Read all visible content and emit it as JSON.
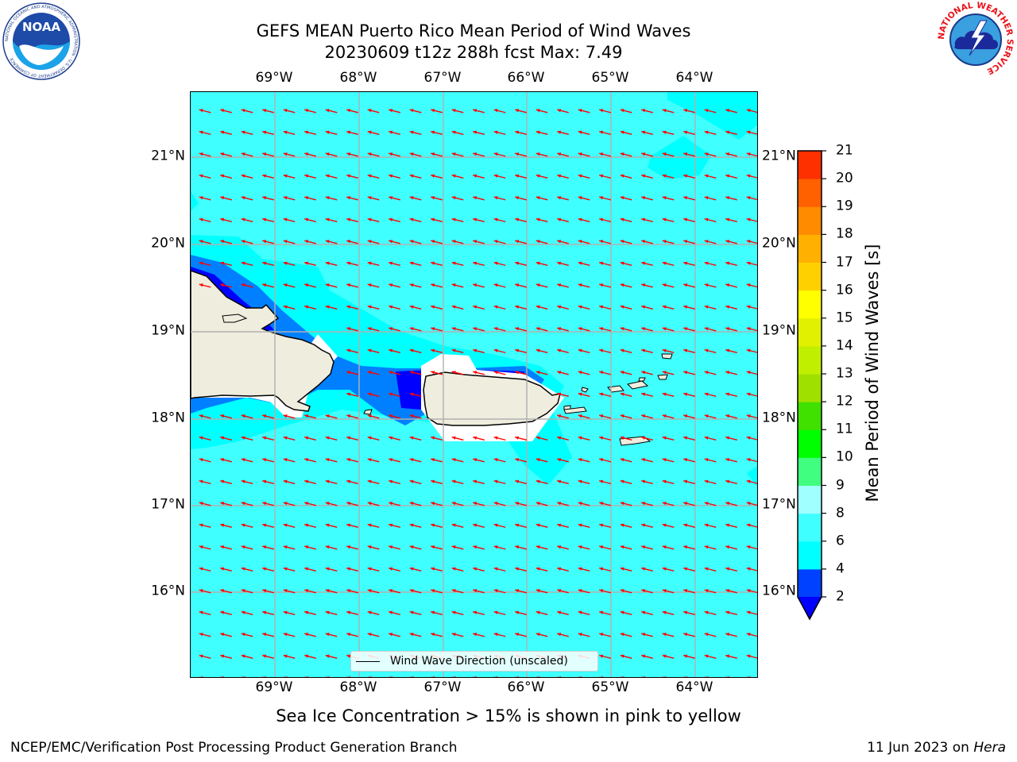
{
  "title": {
    "line1": "GEFS MEAN Puerto Rico Mean Period of Wind Waves",
    "line2": "20230609 t12z 288h fcst   Max: 7.49"
  },
  "map": {
    "lon_ticks": [
      "69°W",
      "68°W",
      "67°W",
      "66°W",
      "65°W",
      "64°W"
    ],
    "lat_ticks": [
      "21°N",
      "20°N",
      "19°N",
      "18°N",
      "17°N",
      "16°N"
    ],
    "lon_range": [
      -70.0,
      -63.25
    ],
    "lat_range": [
      15.0,
      21.75
    ],
    "legend_label": "Wind Wave Direction (unscaled)",
    "arrow_direction": "west-southwest",
    "arrow_color": "#ff0000",
    "land_color": "#efedde",
    "ocean_color": "#40ffff"
  },
  "colorbar": {
    "title": "Mean Period of Wind Waves [s]",
    "levels": [
      "2",
      "4",
      "6",
      "8",
      "9",
      "10",
      "11",
      "12",
      "13",
      "14",
      "15",
      "16",
      "17",
      "18",
      "19",
      "20",
      "21"
    ],
    "colors": [
      "#0040ff",
      "#00ffff",
      "#40ffff",
      "#a0ffff",
      "#40ff80",
      "#00ff00",
      "#40e000",
      "#a0e000",
      "#c0f000",
      "#e0f000",
      "#ffff00",
      "#ffd000",
      "#ffb000",
      "#ff8c00",
      "#ff6000",
      "#ff3000",
      "#ff0000"
    ],
    "under_color": "#0000ff"
  },
  "note": "Sea Ice Concentration > 15% is shown in pink to yellow",
  "footer": {
    "left": "NCEP/EMC/Verification Post Processing Product Generation Branch",
    "right_date": "11 Jun 2023 on ",
    "right_host": "Hera"
  },
  "logos": {
    "noaa_text": "NOAA",
    "noaa_ring": "NATIONAL OCEANIC AND ATMOSPHERIC ADMINISTRATION · U.S. DEPARTMENT OF COMMERCE",
    "nws_ring": "NATIONAL WEATHER SERVICE"
  }
}
